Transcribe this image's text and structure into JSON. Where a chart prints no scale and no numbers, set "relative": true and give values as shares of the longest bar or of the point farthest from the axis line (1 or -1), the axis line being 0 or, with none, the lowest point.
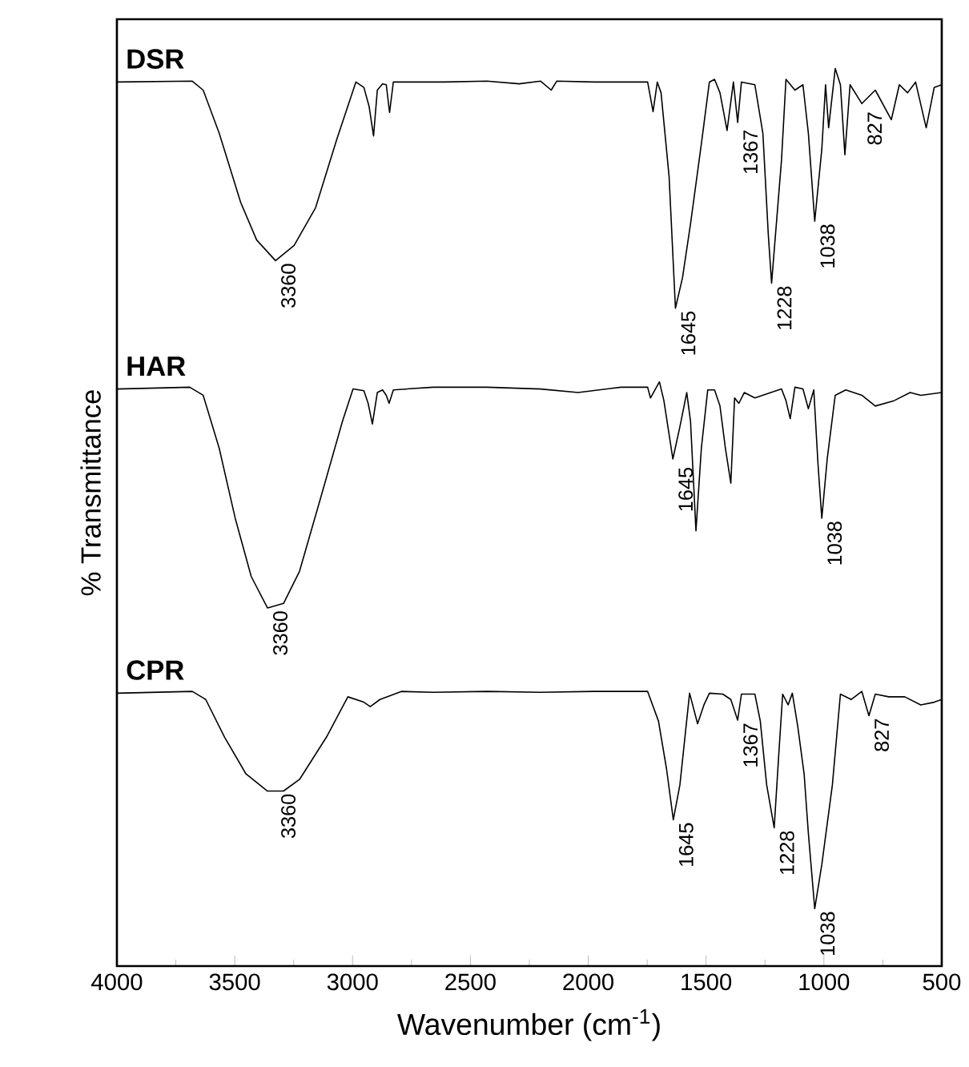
{
  "chart_data": {
    "type": "line",
    "relative": true,
    "xlabel": "Wavenumber (cm$^{-1}$)",
    "ylabel": "% Transmittance",
    "xlim": [
      4000,
      500
    ],
    "xticks": [
      4000,
      3500,
      3000,
      2500,
      2000,
      1500,
      1000,
      500
    ],
    "series": [
      {
        "name": "DSR",
        "color": "#000000",
        "x": [
          4000,
          3680,
          3634,
          3566,
          3475,
          3407,
          3327,
          3248,
          3157,
          3066,
          2986,
          2952,
          2930,
          2911,
          2895,
          2873,
          2857,
          2843,
          2827,
          2611,
          2430,
          2293,
          2202,
          2157,
          2134,
          1975,
          1748,
          1725,
          1707,
          1691,
          1657,
          1630,
          1600,
          1566,
          1520,
          1486,
          1464,
          1441,
          1411,
          1384,
          1366,
          1350,
          1293,
          1259,
          1236,
          1222,
          1180,
          1161,
          1123,
          1089,
          1066,
          1039,
          1009,
          993,
          980,
          952,
          930,
          911,
          889,
          839,
          782,
          714,
          680,
          645,
          611,
          566,
          532,
          500
        ],
        "values": [
          0.985,
          0.986,
          0.976,
          0.928,
          0.851,
          0.809,
          0.786,
          0.803,
          0.845,
          0.922,
          0.985,
          0.979,
          0.958,
          0.925,
          0.976,
          0.983,
          0.982,
          0.951,
          0.985,
          0.985,
          0.986,
          0.983,
          0.986,
          0.976,
          0.986,
          0.985,
          0.985,
          0.952,
          0.985,
          0.973,
          0.88,
          0.733,
          0.767,
          0.827,
          0.916,
          0.985,
          0.988,
          0.973,
          0.931,
          0.985,
          0.94,
          0.985,
          0.982,
          0.928,
          0.815,
          0.761,
          0.898,
          0.988,
          0.976,
          0.982,
          0.928,
          0.83,
          0.91,
          0.982,
          0.934,
          1.0,
          0.982,
          0.904,
          0.982,
          0.961,
          0.976,
          0.943,
          0.982,
          0.973,
          0.985,
          0.934,
          0.979,
          0.982
        ]
      },
      {
        "name": "HAR",
        "color": "#000000",
        "x": [
          4000,
          3691,
          3634,
          3566,
          3498,
          3430,
          3361,
          3293,
          3225,
          3134,
          3043,
          2998,
          2952,
          2934,
          2916,
          2895,
          2873,
          2857,
          2845,
          2827,
          2657,
          2430,
          2202,
          2043,
          1861,
          1748,
          1736,
          1698,
          1679,
          1641,
          1611,
          1582,
          1566,
          1543,
          1520,
          1493,
          1464,
          1441,
          1418,
          1395,
          1379,
          1361,
          1338,
          1293,
          1180,
          1161,
          1143,
          1123,
          1089,
          1066,
          1043,
          1025,
          1009,
          986,
          952,
          907,
          839,
          782,
          702,
          634,
          589,
          500
        ],
        "values": [
          0.643,
          0.645,
          0.636,
          0.577,
          0.499,
          0.434,
          0.399,
          0.404,
          0.44,
          0.523,
          0.607,
          0.643,
          0.641,
          0.627,
          0.604,
          0.639,
          0.642,
          0.636,
          0.627,
          0.642,
          0.645,
          0.645,
          0.643,
          0.639,
          0.645,
          0.645,
          0.633,
          0.651,
          0.63,
          0.565,
          0.601,
          0.639,
          0.607,
          0.485,
          0.577,
          0.642,
          0.642,
          0.624,
          0.577,
          0.538,
          0.633,
          0.627,
          0.639,
          0.633,
          0.643,
          0.63,
          0.61,
          0.645,
          0.643,
          0.621,
          0.642,
          0.559,
          0.499,
          0.565,
          0.636,
          0.642,
          0.636,
          0.624,
          0.63,
          0.639,
          0.636,
          0.639
        ]
      },
      {
        "name": "CPR",
        "color": "#000000",
        "x": [
          4000,
          3680,
          3623,
          3543,
          3452,
          3361,
          3293,
          3225,
          3111,
          3020,
          2952,
          2925,
          2884,
          2793,
          2657,
          2430,
          2202,
          1975,
          1748,
          1702,
          1668,
          1639,
          1611,
          1570,
          1536,
          1509,
          1486,
          1429,
          1395,
          1366,
          1350,
          1293,
          1270,
          1243,
          1211,
          1191,
          1175,
          1152,
          1134,
          1111,
          1084,
          1066,
          1039,
          1009,
          964,
          930,
          884,
          839,
          809,
          782,
          725,
          657,
          589,
          532,
          500
        ],
        "values": [
          0.304,
          0.306,
          0.297,
          0.255,
          0.214,
          0.195,
          0.195,
          0.208,
          0.255,
          0.3,
          0.294,
          0.289,
          0.297,
          0.306,
          0.305,
          0.306,
          0.305,
          0.306,
          0.306,
          0.273,
          0.22,
          0.163,
          0.202,
          0.304,
          0.27,
          0.291,
          0.304,
          0.303,
          0.297,
          0.274,
          0.303,
          0.303,
          0.273,
          0.202,
          0.154,
          0.238,
          0.303,
          0.291,
          0.304,
          0.267,
          0.214,
          0.148,
          0.064,
          0.113,
          0.202,
          0.303,
          0.297,
          0.306,
          0.279,
          0.303,
          0.3,
          0.3,
          0.291,
          0.294,
          0.297
        ]
      }
    ],
    "annotations": [
      {
        "text": "3360",
        "x": 3327,
        "y": 0.786
      },
      {
        "text": "1645",
        "x": 1630,
        "y": 0.733
      },
      {
        "text": "1367",
        "x": 1366,
        "y": 0.935
      },
      {
        "text": "1228",
        "x": 1222,
        "y": 0.761
      },
      {
        "text": "1038",
        "x": 1039,
        "y": 0.83
      },
      {
        "text": "827",
        "x": 839,
        "y": 0.955
      },
      {
        "text": "3360",
        "x": 3361,
        "y": 0.399
      },
      {
        "text": "1645",
        "x": 1641,
        "y": 0.559
      },
      {
        "text": "1038",
        "x": 1009,
        "y": 0.499
      },
      {
        "text": "3360",
        "x": 3327,
        "y": 0.195
      },
      {
        "text": "1645",
        "x": 1639,
        "y": 0.163
      },
      {
        "text": "1367",
        "x": 1366,
        "y": 0.274
      },
      {
        "text": "1228",
        "x": 1211,
        "y": 0.154
      },
      {
        "text": "1038",
        "x": 1039,
        "y": 0.064
      },
      {
        "text": "827",
        "x": 809,
        "y": 0.279
      }
    ]
  }
}
